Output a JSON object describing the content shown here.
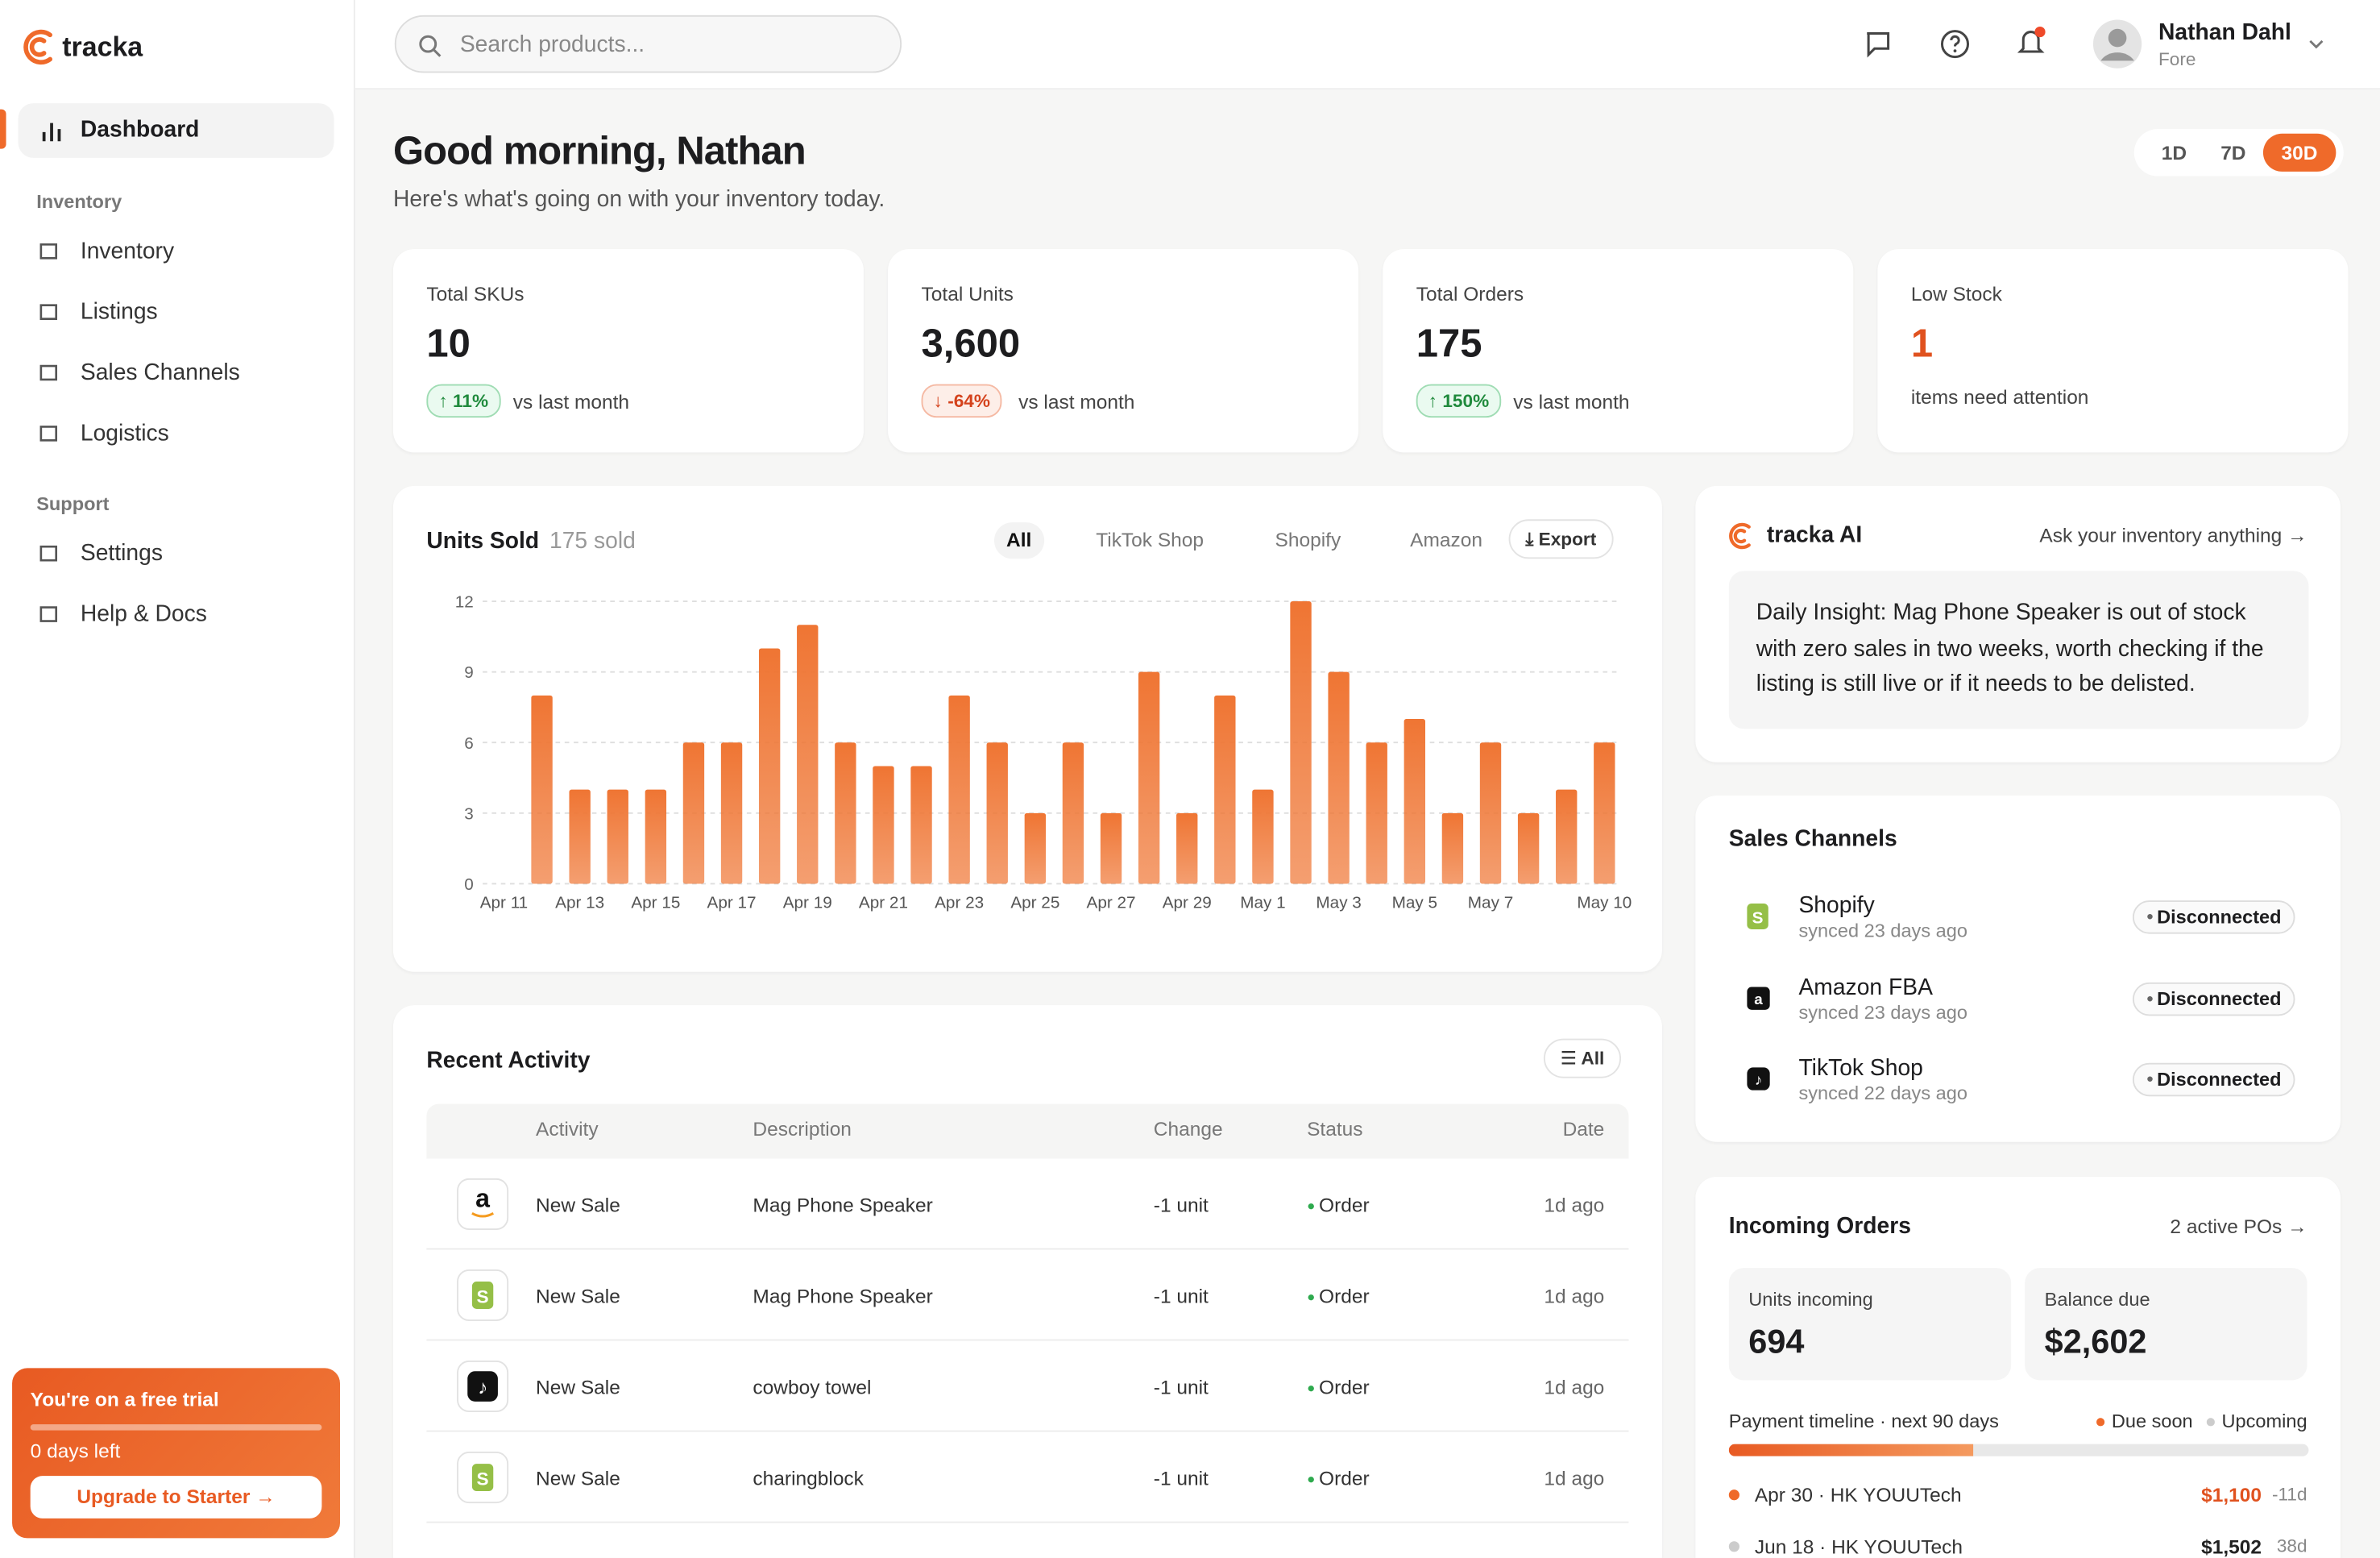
{
  "sidebar": {
    "brand": "tracka",
    "nav_top": "Dashboard",
    "sections": [
      {
        "title": "Inventory",
        "items": [
          "Inventory",
          "Listings",
          "Sales Channels",
          "Logistics"
        ]
      },
      {
        "title": "Support",
        "items": [
          "Settings",
          "Help & Docs"
        ]
      }
    ],
    "trial": {
      "title": "You're on a free trial",
      "days": "0 days left",
      "button": "Upgrade to Starter →"
    }
  },
  "header": {
    "search_placeholder": "Search products...",
    "user_name": "Nathan Dahl",
    "user_org": "Fore"
  },
  "greeting": {
    "title": "Good morning, Nathan",
    "subtitle": "Here's what's going on with your inventory today.",
    "ranges": [
      "1D",
      "7D",
      "30D"
    ],
    "active_range": "30D"
  },
  "kpis": [
    {
      "label": "Total SKUs",
      "value": "10",
      "change": "↑ 11%",
      "trend": "up",
      "note": "vs last month"
    },
    {
      "label": "Total Units",
      "value": "3,600",
      "change": "↓ -64%",
      "trend": "down",
      "note": "vs last month"
    },
    {
      "label": "Total Orders",
      "value": "175",
      "change": "↑ 150%",
      "trend": "up",
      "note": "vs last month"
    },
    {
      "label": "Low Stock",
      "value": "1",
      "trend": "alert",
      "note": "items need attention"
    }
  ],
  "units_chart": {
    "type": "bar",
    "title": "Units Sold",
    "subtitle": "175 sold",
    "filters": [
      "All",
      "TikTok Shop",
      "Shopify",
      "Amazon"
    ],
    "active_filter": "All",
    "export": "Export",
    "categories": [
      "Apr 11",
      null,
      "Apr 13",
      null,
      "Apr 15",
      null,
      "Apr 17",
      null,
      "Apr 19",
      null,
      "Apr 21",
      null,
      "Apr 23",
      null,
      "Apr 25",
      null,
      "Apr 27",
      null,
      "Apr 29",
      null,
      "May 1",
      null,
      "May 3",
      null,
      "May 5",
      null,
      "May 7",
      null,
      null,
      "May 10"
    ],
    "values": [
      0,
      8,
      4,
      4,
      4,
      6,
      6,
      10,
      11,
      6,
      5,
      5,
      8,
      6,
      3,
      6,
      3,
      9,
      3,
      8,
      4,
      12,
      9,
      6,
      7,
      3,
      6,
      3,
      4,
      6
    ],
    "ylim": [
      0,
      12
    ],
    "yticks": [
      0,
      3,
      6,
      9,
      12
    ],
    "color": "#ef7533",
    "grid": true
  },
  "ai": {
    "title": "tracka AI",
    "link": "Ask your inventory anything →",
    "insight": "Daily Insight: Mag Phone Speaker is out of stock with zero sales in two weeks, worth checking if the listing is still live or if it needs to be delisted."
  },
  "channels": {
    "title": "Sales Channels",
    "items": [
      {
        "name": "Shopify",
        "synced": "synced 23 days ago",
        "status": "Disconnected"
      },
      {
        "name": "Amazon FBA",
        "synced": "synced 23 days ago",
        "status": "Disconnected"
      },
      {
        "name": "TikTok Shop",
        "synced": "synced 22 days ago",
        "status": "Disconnected"
      }
    ]
  },
  "activity": {
    "title": "Recent Activity",
    "filter": "All",
    "columns": [
      "Activity",
      "Description",
      "Change",
      "Status",
      "Date"
    ],
    "rows": [
      [
        "New Sale",
        "Mag Phone Speaker",
        "-1 unit",
        "Order",
        "1d ago"
      ],
      [
        "New Sale",
        "Mag Phone Speaker",
        "-1 unit",
        "Order",
        "1d ago"
      ],
      [
        "New Sale",
        "cowboy towel",
        "-1 unit",
        "Order",
        "1d ago"
      ],
      [
        "New Sale",
        "charingblock",
        "-1 unit",
        "Order",
        "1d ago"
      ]
    ]
  },
  "incoming": {
    "title": "Incoming Orders",
    "link": "2 active POs →",
    "units_label": "Units incoming",
    "units": "694",
    "balance_label": "Balance due",
    "balance": "$2,602",
    "timeline_label": "Payment timeline · next 90 days",
    "legend": [
      "Due soon",
      "Upcoming"
    ],
    "payments": [
      {
        "label": "Apr 30 · HK YOUUTech",
        "amount": "$1,100",
        "days": "-11d"
      },
      {
        "label": "Jun 18 · HK YOUUTech",
        "amount": "$1,502",
        "days": "38d"
      }
    ]
  }
}
